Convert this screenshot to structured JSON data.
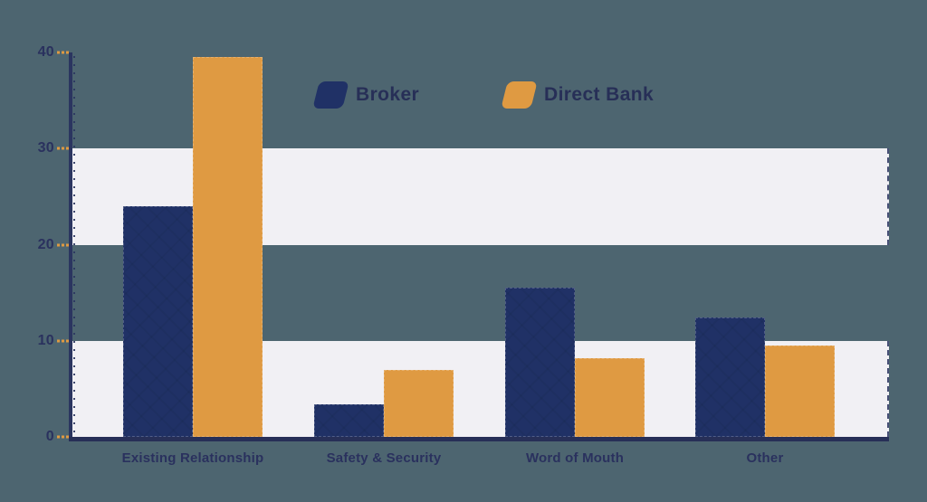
{
  "background_color": "#4d6570",
  "chart_data": {
    "type": "bar",
    "title": "",
    "xlabel": "",
    "ylabel": "",
    "categories": [
      "Existing Relationship",
      "Safety & Security",
      "Word of Mouth",
      "Other"
    ],
    "series": [
      {
        "name": "Broker",
        "color": "#203166",
        "values": [
          24,
          3.4,
          15.5,
          12.4
        ]
      },
      {
        "name": "Direct Bank",
        "color": "#df9a42",
        "values": [
          39.5,
          7,
          8.2,
          9.5
        ]
      }
    ],
    "ylim": [
      0,
      40
    ],
    "yticks": [
      0,
      10,
      20,
      30,
      40
    ],
    "grid": "horizontal-bands",
    "grid_bands": [
      [
        20,
        30
      ],
      [
        0,
        10
      ]
    ],
    "band_color": "#f1f0f4",
    "axis_color": "#2b3560",
    "tick_dash_color": "#df9a42",
    "label_color": "#2a315e",
    "legend_position": "top-center"
  },
  "legend": {
    "items": [
      {
        "label": "Broker",
        "color": "#203166"
      },
      {
        "label": "Direct Bank",
        "color": "#df9a42"
      }
    ]
  }
}
